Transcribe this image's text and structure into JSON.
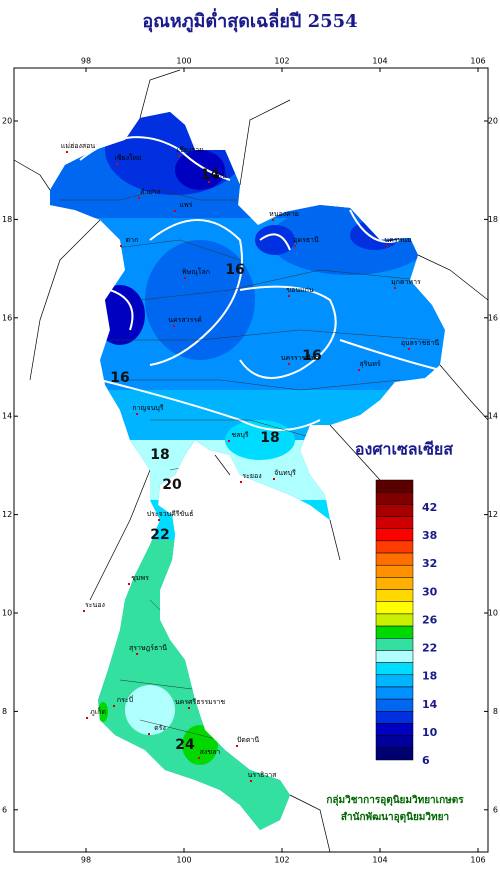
{
  "title": "อุณหภูมิต่ำสุดเฉลี่ยปี 2554",
  "lon_ticks": [
    98,
    100,
    102,
    104,
    106
  ],
  "lat_ticks": [
    20,
    18,
    16,
    14,
    12,
    10,
    8,
    6
  ],
  "legend": {
    "title": "องศาเซลเซียส",
    "colors": [
      "#5a0000",
      "#800000",
      "#a80000",
      "#d00000",
      "#ff0000",
      "#ff3c00",
      "#ff6e00",
      "#ff9000",
      "#ffb000",
      "#ffd800",
      "#ffff00",
      "#c8f000",
      "#00d800",
      "#33e0a0",
      "#b0ffff",
      "#00dcff",
      "#00b4ff",
      "#0090ff",
      "#0068f0",
      "#0030e0",
      "#0000c0",
      "#00009a",
      "#000070"
    ],
    "labels": [
      42,
      38,
      32,
      30,
      26,
      22,
      18,
      14,
      10,
      6
    ]
  },
  "contour_labels": [
    16,
    16,
    16,
    18,
    18,
    20,
    22,
    24,
    14
  ],
  "places": [
    "แม่ฮ่องสอน",
    "เชียงใหม่",
    "เชียงราย",
    "ลำปาง",
    "น่าน",
    "แพร่",
    "ตาก",
    "พิษณุโลก",
    "หนองคาย",
    "อุดรธานี",
    "ขอนแก่น",
    "นครพนม",
    "มุกดาหาร",
    "อุบลราชธานี",
    "นครราชสีมา",
    "สุรินทร์",
    "นครสวรรค์",
    "กาญจนบุรี",
    "ชลบุรี",
    "ระยอง",
    "จันทบุรี",
    "ประจวบคีรีขันธ์",
    "ชุมพร",
    "ระนอง",
    "สุราษฎร์ธานี",
    "ภูเก็ต",
    "กระบี่",
    "นครศรีธรรมราช",
    "ตรัง",
    "สงขลา",
    "ปัตตานี",
    "นราธิวาส"
  ],
  "credits": [
    "กลุ่มวิชาการอุตุนิยมวิทยาเกษตร",
    "สำนักพัฒนาอุตุนิยมวิทยา"
  ]
}
